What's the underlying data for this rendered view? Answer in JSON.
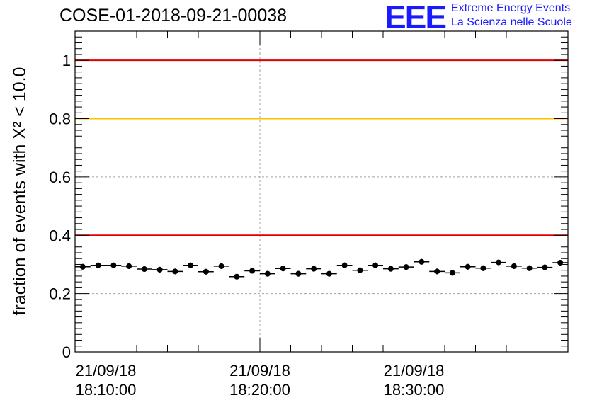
{
  "title": "COSE-01-2018-09-21-00038",
  "logo": {
    "mark": "EEE",
    "line1": "Extreme Energy Events",
    "line2": "La Scienza nelle Scuole",
    "color": "#1a1aff"
  },
  "chart_data": {
    "type": "scatter",
    "title": "COSE-01-2018-09-21-00038",
    "ylabel": "fraction of events with X² < 10.0",
    "xlabel": "",
    "ylim": [
      0,
      1.1
    ],
    "xlim_minutes": [
      18.0,
      50.0
    ],
    "grid": true,
    "y_ticks": [
      "0",
      "0.2",
      "0.4",
      "0.6",
      "0.8",
      "1"
    ],
    "x_ticks": [
      {
        "minute": 20,
        "date": "21/09/18",
        "time": "18:10:00"
      },
      {
        "minute": 30,
        "date": "21/09/18",
        "time": "18:20:00"
      },
      {
        "minute": 40,
        "date": "21/09/18",
        "time": "18:30:00"
      }
    ],
    "reference_lines": [
      {
        "y": 1.0,
        "color": "#e00000"
      },
      {
        "y": 0.8,
        "color": "#ffc000"
      },
      {
        "y": 0.4,
        "color": "#e00000"
      }
    ],
    "bin_width_minutes": 1.0,
    "series": [
      {
        "marker_color": "#000000",
        "x_minutes": [
          18.5,
          19.5,
          20.5,
          21.5,
          22.5,
          23.5,
          24.5,
          25.5,
          26.5,
          27.5,
          28.5,
          29.5,
          30.5,
          31.5,
          32.5,
          33.5,
          34.5,
          35.5,
          36.5,
          37.5,
          38.5,
          39.5,
          40.5,
          41.5,
          42.5,
          43.5,
          44.5,
          45.5,
          46.5,
          47.5,
          48.5,
          49.5
        ],
        "values": [
          0.292,
          0.297,
          0.297,
          0.294,
          0.284,
          0.282,
          0.276,
          0.297,
          0.275,
          0.294,
          0.258,
          0.278,
          0.268,
          0.286,
          0.268,
          0.285,
          0.268,
          0.297,
          0.28,
          0.297,
          0.285,
          0.291,
          0.309,
          0.276,
          0.271,
          0.292,
          0.287,
          0.307,
          0.294,
          0.287,
          0.29,
          0.306
        ]
      }
    ]
  }
}
